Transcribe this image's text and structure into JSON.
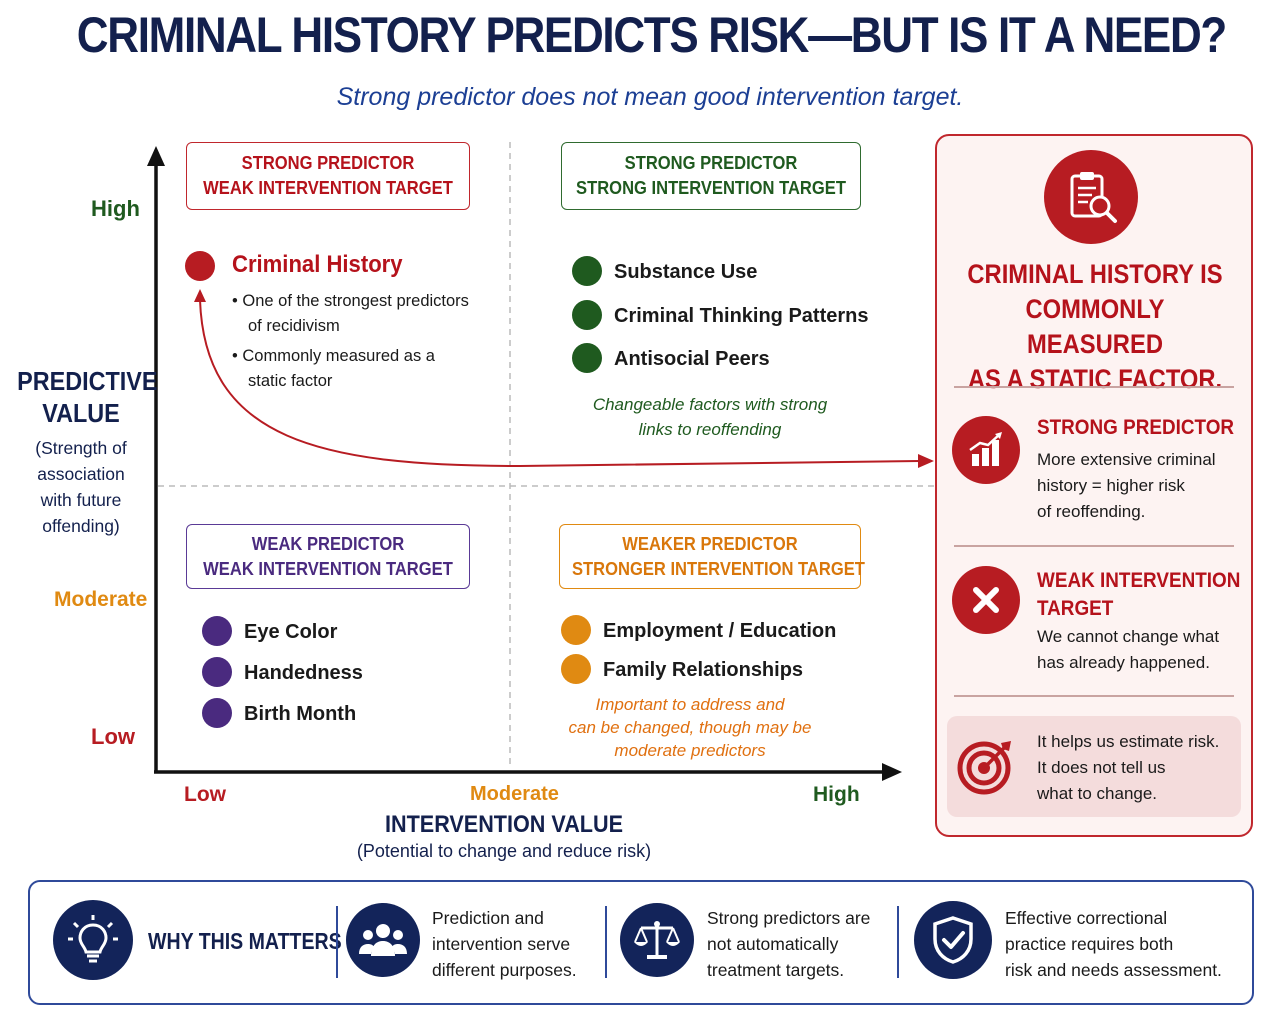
{
  "title": "CRIMINAL HISTORY PREDICTS RISK—BUT IS IT A NEED?",
  "subtitle": "Strong predictor does not mean good intervention target.",
  "y_axis": {
    "title_line1": "PREDICTIVE",
    "title_line2": "VALUE",
    "sub_line1": "(Strength of",
    "sub_line2": "association",
    "sub_line3": "with future",
    "sub_line4": "offending)",
    "ticks": [
      "High",
      "Moderate",
      "Low"
    ]
  },
  "x_axis": {
    "title": "INTERVENTION VALUE",
    "subtitle": "(Potential to change and reduce risk)",
    "ticks": [
      "Low",
      "Moderate",
      "High"
    ]
  },
  "quadrants": {
    "top_left": {
      "header_line1": "STRONG PREDICTOR",
      "header_line2": "WEAK INTERVENTION TARGET",
      "item": "Criminal History",
      "bullet1_line1": "One of the strongest predictors",
      "bullet1_line2": "of recidivism",
      "bullet2_line1": "Commonly measured as a",
      "bullet2_line2": "static factor"
    },
    "top_right": {
      "header_line1": "STRONG PREDICTOR",
      "header_line2": "STRONG INTERVENTION TARGET",
      "items": [
        "Substance Use",
        "Criminal Thinking Patterns",
        "Antisocial Peers"
      ],
      "note_line1": "Changeable factors with strong",
      "note_line2": "links to reoffending"
    },
    "bottom_left": {
      "header_line1": "WEAK PREDICTOR",
      "header_line2": "WEAK INTERVENTION TARGET",
      "items": [
        "Eye Color",
        "Handedness",
        "Birth Month"
      ]
    },
    "bottom_right": {
      "header_line1": "WEAKER PREDICTOR",
      "header_line2": "STRONGER INTERVENTION TARGET",
      "items": [
        "Employment / Education",
        "Family Relationships"
      ],
      "note_line1": "Important to address and",
      "note_line2": "can be changed, though may be",
      "note_line3": "moderate predictors"
    }
  },
  "panel": {
    "headline_line1": "CRIMINAL HISTORY IS",
    "headline_line2": "COMMONLY MEASURED",
    "headline_line3": "AS A STATIC FACTOR.",
    "strong": {
      "title": "STRONG PREDICTOR",
      "line1": "More extensive criminal",
      "line2": "history = higher risk",
      "line3": "of reoffending."
    },
    "weak": {
      "title_line1": "WEAK INTERVENTION",
      "title_line2": "TARGET",
      "line1": "We cannot change what",
      "line2": "has already happened."
    },
    "insight": {
      "line1": "It helps us estimate risk.",
      "line2": "It does not tell us",
      "line3": "what to change."
    }
  },
  "bottom": {
    "why_label": "WHY THIS MATTERS",
    "item1": [
      "Prediction and",
      "intervention serve",
      "different purposes."
    ],
    "item2": [
      "Strong predictors are",
      "not automatically",
      "treatment targets."
    ],
    "item3": [
      "Effective correctional",
      "practice requires both",
      "risk and needs assessment."
    ]
  },
  "colors": {
    "navy": "#13204d",
    "red": "#b71c22",
    "green": "#1f5a1f",
    "purple": "#4a2a7f",
    "orange": "#e08a12",
    "blue": "#1c3f94"
  },
  "icons": [
    "clipboard-search-icon",
    "bar-chart-up-icon",
    "x-circle-icon",
    "target-icon",
    "lightbulb-icon",
    "people-icon",
    "scales-icon",
    "shield-check-icon"
  ]
}
